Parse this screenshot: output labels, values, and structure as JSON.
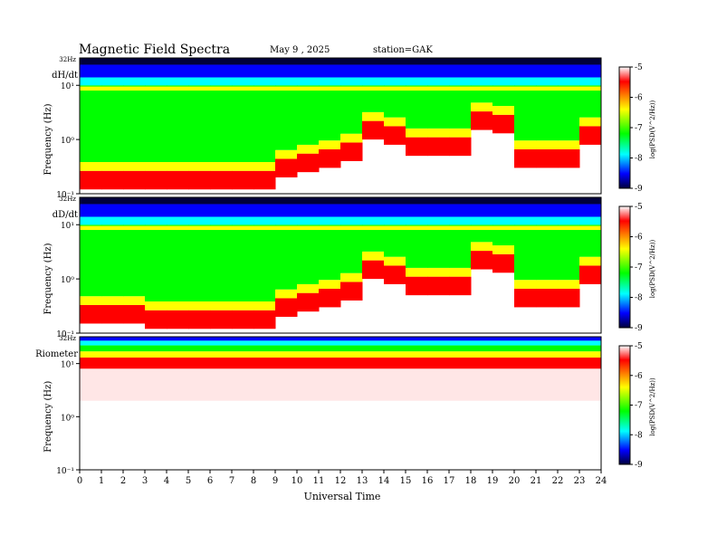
{
  "header": {
    "title": "Magnetic  Field  Spectra",
    "date": "May 9  , 2025",
    "station": "station=GAK"
  },
  "chart_data": [
    {
      "type": "heatmap",
      "panel_label": "dH/dt",
      "top_label": "32Hz",
      "ylabel": "Frequency  (Hz)",
      "y_scale": "log",
      "ylim": [
        0.1,
        32
      ],
      "ytick_labels": [
        "10⁻¹",
        "10⁰",
        "10¹"
      ],
      "colorbar": {
        "label": "log(PSD(V^2/Hz))",
        "range": [
          -9,
          -5
        ],
        "tick_labels": [
          "-5",
          "-6",
          "-7",
          "-8",
          "-9"
        ]
      },
      "noise_floor_freq_by_hour": [
        0.12,
        0.12,
        0.12,
        0.12,
        0.12,
        0.12,
        0.12,
        0.12,
        0.12,
        0.2,
        0.25,
        0.3,
        0.4,
        1.0,
        1.3,
        0.8,
        0.5,
        0.5,
        1.5,
        2.0,
        1.3,
        0.3,
        0.3,
        0.8,
        0.8
      ]
    },
    {
      "type": "heatmap",
      "panel_label": "dD/dt",
      "top_label": "32Hz",
      "ylabel": "Frequency  (Hz)",
      "y_scale": "log",
      "ylim": [
        0.1,
        32
      ],
      "ytick_labels": [
        "10⁻¹",
        "10⁰",
        "10¹"
      ],
      "colorbar": {
        "label": "log(PSD(V^2/Hz))",
        "range": [
          -9,
          -5
        ],
        "tick_labels": [
          "-5",
          "-6",
          "-7",
          "-8",
          "-9"
        ]
      },
      "noise_floor_freq_by_hour": [
        0.15,
        0.15,
        0.15,
        0.15,
        0.12,
        0.12,
        0.12,
        0.12,
        0.12,
        0.2,
        0.25,
        0.3,
        0.4,
        1.0,
        1.3,
        0.8,
        0.5,
        0.5,
        1.5,
        2.0,
        1.3,
        0.3,
        0.3,
        0.8,
        0.8
      ]
    },
    {
      "type": "heatmap",
      "panel_label": "Riometer",
      "top_label": "32Hz",
      "ylabel": "Frequency  (Hz)",
      "y_scale": "log",
      "ylim": [
        0.1,
        32
      ],
      "ytick_labels": [
        "10⁻¹",
        "10⁰",
        "10¹"
      ],
      "colorbar": {
        "label": "log(PSD(V^2/Hz))",
        "range": [
          -9,
          -5
        ],
        "tick_labels": [
          "-5",
          "-6",
          "-7",
          "-8",
          "-9"
        ]
      },
      "noise_floor_freq_by_hour": [
        8,
        8,
        8,
        8,
        8,
        8,
        8,
        8,
        8,
        8,
        8,
        8,
        8,
        8,
        8,
        8,
        8,
        8,
        8,
        8,
        8,
        8,
        8,
        8,
        8
      ]
    }
  ],
  "xaxis": {
    "label": "Universal Time",
    "xlim": [
      0,
      24
    ],
    "tick_labels": [
      "0",
      "1",
      "2",
      "3",
      "4",
      "5",
      "6",
      "7",
      "8",
      "9",
      "10",
      "11",
      "12",
      "13",
      "14",
      "15",
      "16",
      "17",
      "18",
      "19",
      "20",
      "21",
      "22",
      "23",
      "24"
    ]
  },
  "colors": {
    "white": "#ffffff",
    "red": "#ff0000",
    "yellow": "#ffff00",
    "green": "#00ff00",
    "cyan": "#00ffff",
    "blue": "#0000ff",
    "navy": "#00003c"
  }
}
